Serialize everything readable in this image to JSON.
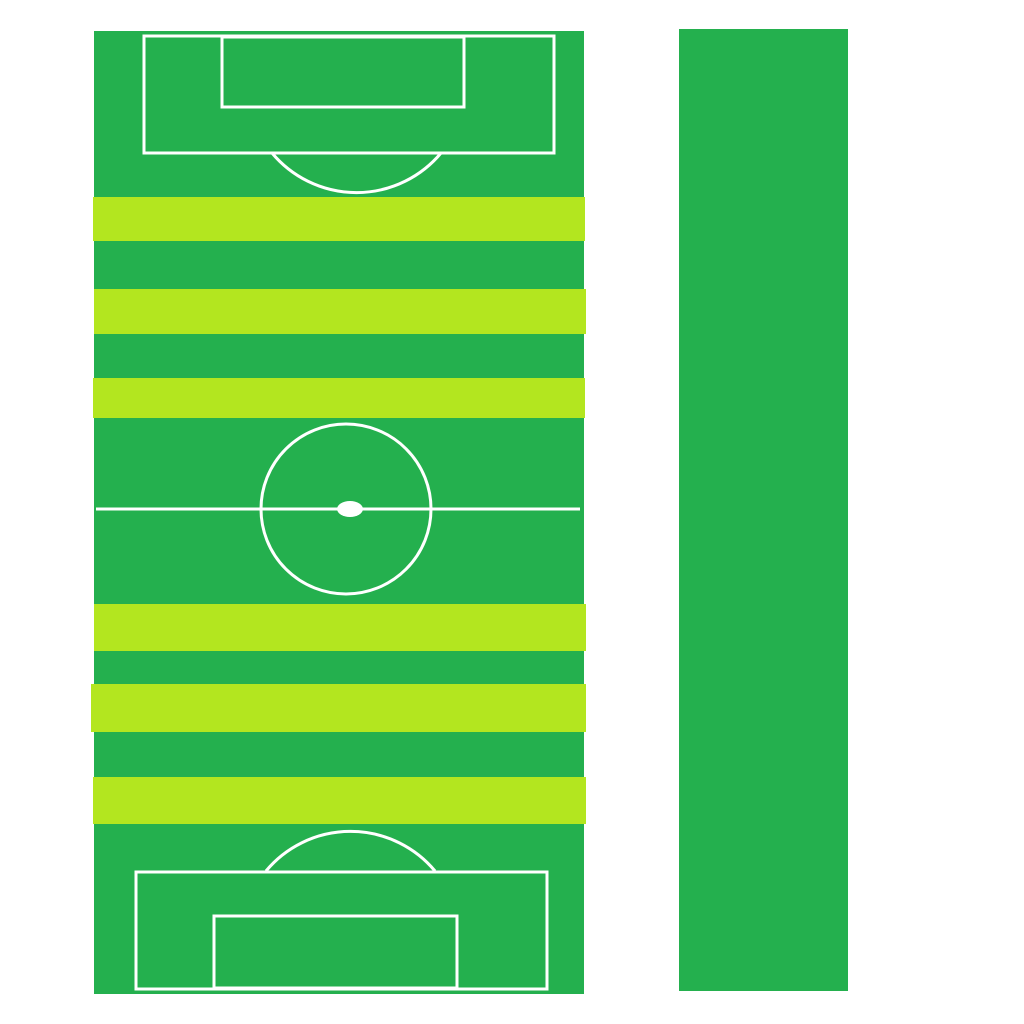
{
  "colors": {
    "background": "#ffffff",
    "field_green": "#24b04e",
    "stripe_lime": "#b3e61f",
    "line_white": "#ffffff",
    "side_panel_green": "#24b04e"
  },
  "field": {
    "orientation": "vertical",
    "stripe_count": 6,
    "markings": [
      "top-penalty-box",
      "top-goal-box",
      "top-penalty-arc",
      "halfway-line",
      "center-circle",
      "center-spot",
      "bottom-penalty-box",
      "bottom-goal-box",
      "bottom-penalty-arc"
    ]
  },
  "side_panel": {
    "present": true
  }
}
